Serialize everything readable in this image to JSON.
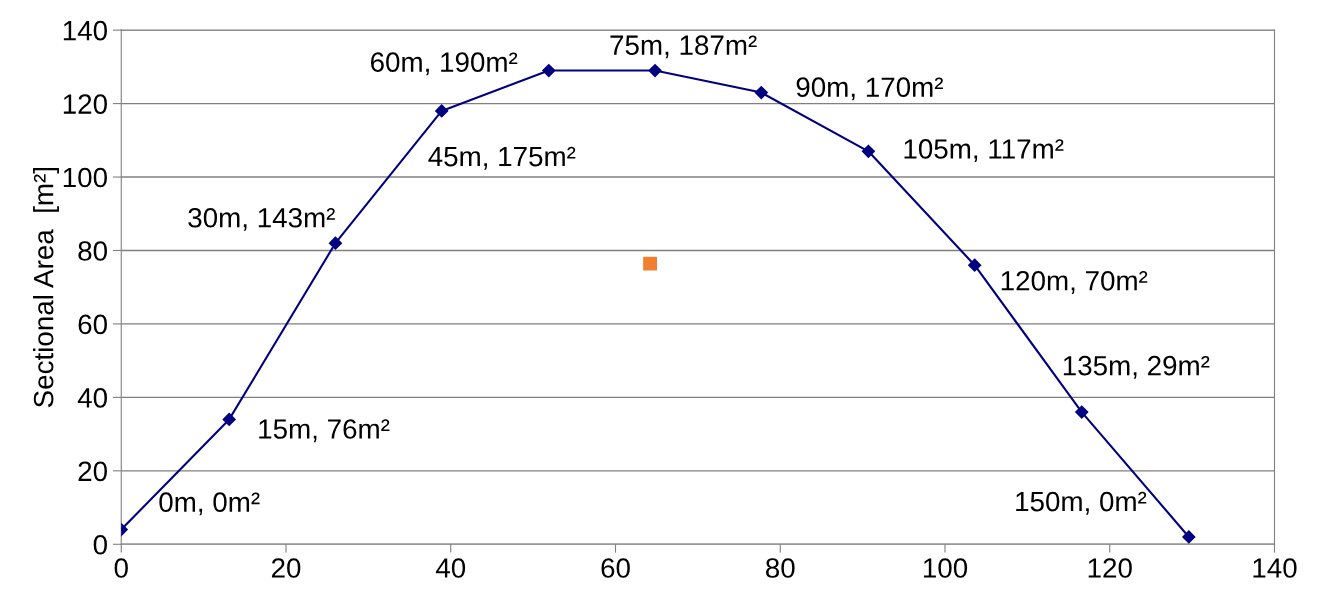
{
  "chart_data": {
    "type": "line",
    "ylabel": "Sectional Area  [m²]",
    "xlim": [
      0,
      140
    ],
    "xticks": [
      0,
      20,
      40,
      60,
      80,
      100,
      120,
      140
    ],
    "ylim": [
      0,
      140
    ],
    "yticks": [
      0,
      20,
      40,
      60,
      80,
      100,
      120,
      140
    ],
    "grid": "y",
    "legend": false,
    "series": [
      {
        "color": "#000080",
        "marker": "diamond",
        "line_style": "solid",
        "x": [
          0,
          13.1,
          26,
          38.9,
          51.9,
          64.8,
          77.7,
          90.7,
          103.6,
          116.6,
          129.6
        ],
        "values": [
          4,
          34,
          82,
          118,
          129,
          129,
          123,
          107,
          76,
          36,
          2
        ]
      },
      {
        "type": "scatter",
        "color": "#f08030",
        "marker": "square",
        "x": [
          64.2
        ],
        "values": [
          76.4
        ]
      }
    ],
    "annotations": [
      {
        "text": "0m, 0m²",
        "x": 0,
        "y": 4
      },
      {
        "text": "15m, 76m²",
        "x": 13.1,
        "y": 34
      },
      {
        "text": "30m, 143m²",
        "x": 26,
        "y": 82
      },
      {
        "text": "45m, 175m²",
        "x": 38.9,
        "y": 118
      },
      {
        "text": "60m, 190m²",
        "x": 51.9,
        "y": 129
      },
      {
        "text": "75m, 187m²",
        "x": 64.8,
        "y": 129
      },
      {
        "text": "90m, 170m²",
        "x": 77.7,
        "y": 123
      },
      {
        "text": "105m, 117m²",
        "x": 90.7,
        "y": 107
      },
      {
        "text": "120m, 70m²",
        "x": 103.6,
        "y": 76
      },
      {
        "text": "135m, 29m²",
        "x": 116.6,
        "y": 36
      },
      {
        "text": "150m, 0m²",
        "x": 129.6,
        "y": 2
      }
    ]
  }
}
